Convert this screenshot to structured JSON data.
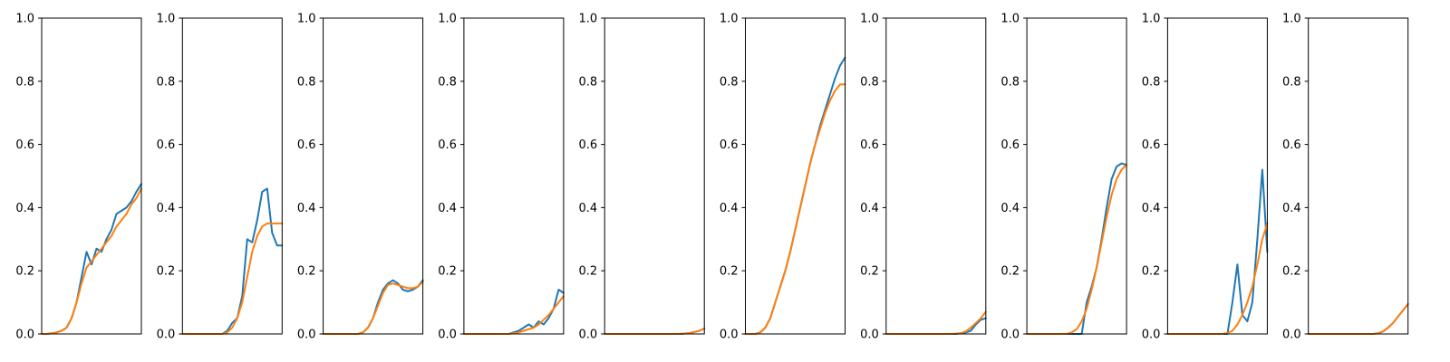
{
  "chart_data": {
    "type": "line",
    "panel_count": 10,
    "ylim": [
      0,
      1
    ],
    "yticks": [
      "0.0",
      "0.2",
      "0.4",
      "0.6",
      "0.8",
      "1.0"
    ],
    "xticks_shown": false,
    "grid": false,
    "legend": "none",
    "series_colors": [
      "#1f77b4",
      "#ff7f0e"
    ],
    "x": [
      0,
      0.05,
      0.1,
      0.15,
      0.2,
      0.25,
      0.3,
      0.35,
      0.4,
      0.45,
      0.5,
      0.55,
      0.6,
      0.65,
      0.7,
      0.75,
      0.8,
      0.85,
      0.9,
      0.95,
      1.0
    ],
    "panels": [
      {
        "series": [
          {
            "values": [
              0,
              0,
              0.002,
              0.005,
              0.01,
              0.02,
              0.05,
              0.1,
              0.18,
              0.26,
              0.22,
              0.27,
              0.26,
              0.3,
              0.33,
              0.38,
              0.39,
              0.4,
              0.42,
              0.45,
              0.475
            ],
            "color": "#1f77b4"
          },
          {
            "values": [
              0,
              0,
              0.002,
              0.005,
              0.01,
              0.02,
              0.05,
              0.1,
              0.16,
              0.21,
              0.23,
              0.25,
              0.27,
              0.29,
              0.31,
              0.34,
              0.36,
              0.38,
              0.41,
              0.43,
              0.46
            ],
            "color": "#ff7f0e"
          }
        ]
      },
      {
        "series": [
          {
            "values": [
              0,
              0,
              0,
              0,
              0,
              0,
              0,
              0,
              0,
              0.01,
              0.035,
              0.05,
              0.12,
              0.3,
              0.29,
              0.36,
              0.45,
              0.46,
              0.32,
              0.28,
              0.28
            ],
            "color": "#1f77b4"
          },
          {
            "values": [
              0,
              0,
              0,
              0,
              0,
              0,
              0,
              0,
              0,
              0.005,
              0.02,
              0.05,
              0.1,
              0.18,
              0.26,
              0.31,
              0.34,
              0.35,
              0.35,
              0.35,
              0.35
            ],
            "color": "#ff7f0e"
          }
        ]
      },
      {
        "series": [
          {
            "values": [
              0,
              0,
              0,
              0,
              0,
              0,
              0,
              0,
              0.005,
              0.02,
              0.05,
              0.1,
              0.14,
              0.16,
              0.17,
              0.16,
              0.14,
              0.135,
              0.14,
              0.15,
              0.17
            ],
            "color": "#1f77b4"
          },
          {
            "values": [
              0,
              0,
              0,
              0,
              0,
              0,
              0,
              0,
              0.005,
              0.02,
              0.05,
              0.09,
              0.13,
              0.155,
              0.16,
              0.155,
              0.15,
              0.145,
              0.145,
              0.15,
              0.165
            ],
            "color": "#ff7f0e"
          }
        ]
      },
      {
        "series": [
          {
            "values": [
              0,
              0,
              0,
              0,
              0,
              0,
              0,
              0,
              0,
              0,
              0.005,
              0.01,
              0.02,
              0.03,
              0.02,
              0.04,
              0.03,
              0.05,
              0.08,
              0.14,
              0.13
            ],
            "color": "#1f77b4"
          },
          {
            "values": [
              0,
              0,
              0,
              0,
              0,
              0,
              0,
              0,
              0,
              0,
              0.002,
              0.005,
              0.01,
              0.015,
              0.02,
              0.03,
              0.045,
              0.06,
              0.08,
              0.1,
              0.12
            ],
            "color": "#ff7f0e"
          }
        ]
      },
      {
        "series": [
          {
            "values": [
              0,
              0,
              0,
              0,
              0,
              0,
              0,
              0,
              0,
              0,
              0,
              0,
              0,
              0,
              0,
              0,
              0.001,
              0.003,
              0.006,
              0.01,
              0.017
            ],
            "color": "#1f77b4"
          },
          {
            "values": [
              0,
              0,
              0,
              0,
              0,
              0,
              0,
              0,
              0,
              0,
              0,
              0,
              0,
              0,
              0,
              0,
              0.001,
              0.003,
              0.006,
              0.01,
              0.017
            ],
            "color": "#ff7f0e"
          }
        ]
      },
      {
        "series": [
          {
            "values": [
              0,
              0,
              0,
              0.005,
              0.02,
              0.05,
              0.1,
              0.15,
              0.2,
              0.26,
              0.33,
              0.4,
              0.47,
              0.54,
              0.6,
              0.66,
              0.71,
              0.76,
              0.81,
              0.85,
              0.875
            ],
            "color": "#1f77b4"
          },
          {
            "values": [
              0,
              0,
              0,
              0.005,
              0.02,
              0.05,
              0.1,
              0.15,
              0.2,
              0.26,
              0.33,
              0.4,
              0.47,
              0.54,
              0.6,
              0.65,
              0.7,
              0.74,
              0.77,
              0.79,
              0.79
            ],
            "color": "#ff7f0e"
          }
        ]
      },
      {
        "series": [
          {
            "values": [
              0,
              0,
              0,
              0,
              0,
              0,
              0,
              0,
              0,
              0,
              0,
              0,
              0,
              0,
              0,
              0.002,
              0.005,
              0.01,
              0.03,
              0.045,
              0.05
            ],
            "color": "#1f77b4"
          },
          {
            "values": [
              0,
              0,
              0,
              0,
              0,
              0,
              0,
              0,
              0,
              0,
              0,
              0,
              0,
              0,
              0.001,
              0.003,
              0.008,
              0.02,
              0.035,
              0.05,
              0.07
            ],
            "color": "#ff7f0e"
          }
        ]
      },
      {
        "series": [
          {
            "values": [
              0,
              0,
              0,
              0,
              0,
              0,
              0,
              0,
              0,
              0,
              0,
              0,
              0.1,
              0.15,
              0.21,
              0.3,
              0.4,
              0.49,
              0.53,
              0.54,
              0.535
            ],
            "color": "#1f77b4"
          },
          {
            "values": [
              0,
              0,
              0,
              0,
              0,
              0,
              0,
              0,
              0,
              0.005,
              0.015,
              0.04,
              0.08,
              0.14,
              0.21,
              0.29,
              0.37,
              0.44,
              0.49,
              0.52,
              0.535
            ],
            "color": "#ff7f0e"
          }
        ]
      },
      {
        "series": [
          {
            "values": [
              0,
              0,
              0,
              0,
              0,
              0,
              0,
              0,
              0,
              0,
              0,
              0,
              0,
              0.1,
              0.22,
              0.06,
              0.04,
              0.1,
              0.3,
              0.52,
              0.26
            ],
            "color": "#1f77b4"
          },
          {
            "values": [
              0,
              0,
              0,
              0,
              0,
              0,
              0,
              0,
              0,
              0,
              0,
              0,
              0.003,
              0.01,
              0.03,
              0.06,
              0.1,
              0.15,
              0.22,
              0.3,
              0.35
            ],
            "color": "#ff7f0e"
          }
        ]
      },
      {
        "series": [
          {
            "values": [
              0,
              0,
              0,
              0,
              0,
              0,
              0,
              0,
              0,
              0,
              0,
              0,
              0,
              0,
              0.002,
              0.008,
              0.02,
              0.035,
              0.055,
              0.075,
              0.095
            ],
            "color": "#1f77b4"
          },
          {
            "values": [
              0,
              0,
              0,
              0,
              0,
              0,
              0,
              0,
              0,
              0,
              0,
              0,
              0,
              0,
              0.002,
              0.008,
              0.02,
              0.035,
              0.055,
              0.075,
              0.095
            ],
            "color": "#ff7f0e"
          }
        ]
      }
    ]
  }
}
